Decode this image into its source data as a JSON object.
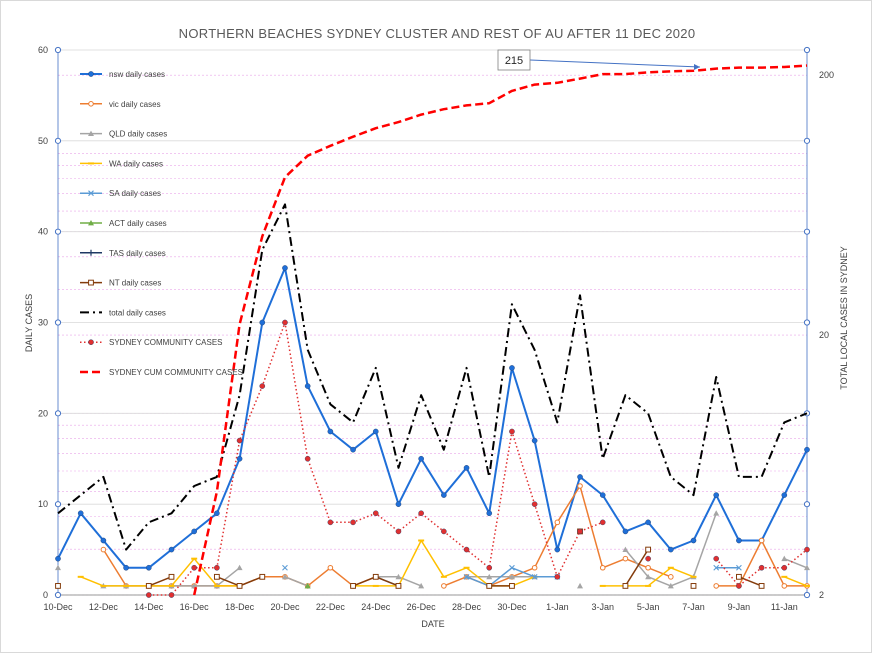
{
  "chart_data": {
    "type": "line",
    "title": "NORTHERN BEACHES SYDNEY CLUSTER AND REST OF AU AFTER 11 DEC 2020",
    "xlabel": "DATE",
    "ylabel": "DAILY CASES",
    "y2label": "TOTAL LOCAL CASES IN SYDNEY",
    "ylim": [
      0,
      60
    ],
    "yticks": [
      "0",
      "10",
      "20",
      "30",
      "40",
      "50",
      "60"
    ],
    "y2scale": "log",
    "y2lim": [
      2,
      250
    ],
    "y2ticks": [
      "2",
      "20",
      "200"
    ],
    "grid": true,
    "legend_position": "top-left",
    "x": [
      "10-Dec",
      "11-Dec",
      "12-Dec",
      "13-Dec",
      "14-Dec",
      "15-Dec",
      "16-Dec",
      "17-Dec",
      "18-Dec",
      "19-Dec",
      "20-Dec",
      "21-Dec",
      "22-Dec",
      "23-Dec",
      "24-Dec",
      "25-Dec",
      "26-Dec",
      "27-Dec",
      "28-Dec",
      "29-Dec",
      "30-Dec",
      "31-Dec",
      "1-Jan",
      "2-Jan",
      "3-Jan",
      "4-Jan",
      "5-Jan",
      "6-Jan",
      "7-Jan",
      "8-Jan",
      "9-Jan",
      "10-Jan",
      "11-Jan",
      "12-Jan"
    ],
    "xtick_labels": [
      "10-Dec",
      "12-Dec",
      "14-Dec",
      "16-Dec",
      "18-Dec",
      "20-Dec",
      "22-Dec",
      "24-Dec",
      "26-Dec",
      "28-Dec",
      "30-Dec",
      "1-Jan",
      "3-Jan",
      "5-Jan",
      "7-Jan",
      "9-Jan",
      "11-Jan"
    ],
    "series": [
      {
        "name": "nsw daily cases",
        "axis": "left",
        "color": "#1f6fd8",
        "style": "solid",
        "marker": "dot",
        "width": 2,
        "values": [
          4,
          9,
          6,
          3,
          3,
          5,
          7,
          9,
          15,
          30,
          36,
          23,
          18,
          16,
          18,
          10,
          15,
          11,
          14,
          9,
          25,
          17,
          5,
          13,
          11,
          7,
          8,
          5,
          6,
          11,
          6,
          6,
          11,
          16
        ]
      },
      {
        "name": "vic daily cases",
        "axis": "left",
        "color": "#ed7d31",
        "style": "solid",
        "marker": "circle",
        "width": 1.5,
        "values": [
          null,
          null,
          5,
          1,
          1,
          1,
          1,
          1,
          1,
          2,
          2,
          1,
          3,
          1,
          2,
          null,
          null,
          1,
          2,
          1,
          2,
          3,
          8,
          12,
          3,
          4,
          3,
          2,
          null,
          1,
          1,
          6,
          1,
          1
        ]
      },
      {
        "name": "QLD daily cases",
        "axis": "left",
        "color": "#a5a5a5",
        "style": "solid",
        "marker": "triangle",
        "width": 1.5,
        "values": [
          3,
          null,
          1,
          1,
          1,
          1,
          1,
          1,
          3,
          null,
          2,
          1,
          null,
          null,
          2,
          2,
          1,
          null,
          2,
          2,
          2,
          2,
          null,
          1,
          null,
          5,
          2,
          1,
          2,
          9,
          null,
          null,
          4,
          3
        ]
      },
      {
        "name": "WA  daily cases",
        "axis": "left",
        "color": "#ffc000",
        "style": "solid",
        "marker": "dash",
        "width": 1.5,
        "values": [
          null,
          2,
          1,
          1,
          1,
          1,
          4,
          1,
          1,
          null,
          null,
          null,
          null,
          1,
          1,
          1,
          6,
          2,
          3,
          1,
          1,
          2,
          null,
          null,
          1,
          1,
          1,
          3,
          2,
          null,
          null,
          null,
          2,
          1
        ]
      },
      {
        "name": "SA  daily cases",
        "axis": "left",
        "color": "#5b9bd5",
        "style": "solid",
        "marker": "x",
        "width": 1.5,
        "values": [
          null,
          null,
          null,
          null,
          null,
          null,
          null,
          null,
          null,
          null,
          3,
          null,
          null,
          null,
          2,
          1,
          null,
          null,
          2,
          1,
          3,
          2,
          2,
          null,
          null,
          null,
          null,
          null,
          null,
          3,
          3,
          null,
          null,
          null
        ]
      },
      {
        "name": "ACT daily cases",
        "axis": "left",
        "color": "#70ad47",
        "style": "solid",
        "marker": "triangle",
        "width": 1.5,
        "values": [
          null,
          null,
          null,
          null,
          null,
          null,
          null,
          null,
          null,
          null,
          null,
          1,
          null,
          null,
          null,
          null,
          null,
          null,
          null,
          null,
          null,
          null,
          null,
          null,
          null,
          null,
          null,
          null,
          null,
          null,
          null,
          null,
          null,
          null
        ]
      },
      {
        "name": "TAS daily cases",
        "axis": "left",
        "color": "#1f3864",
        "style": "solid",
        "marker": "plus",
        "width": 1.5,
        "values": [
          null,
          null,
          null,
          null,
          null,
          null,
          null,
          null,
          null,
          null,
          null,
          null,
          null,
          null,
          null,
          null,
          null,
          null,
          null,
          null,
          null,
          null,
          null,
          null,
          null,
          null,
          null,
          null,
          null,
          null,
          null,
          null,
          null,
          null
        ]
      },
      {
        "name": "NT daily cases",
        "axis": "left",
        "color": "#843c0c",
        "style": "solid",
        "marker": "square",
        "width": 1.5,
        "values": [
          1,
          null,
          null,
          null,
          1,
          2,
          null,
          2,
          1,
          2,
          null,
          null,
          null,
          1,
          2,
          1,
          null,
          null,
          null,
          1,
          1,
          null,
          null,
          7,
          null,
          1,
          5,
          null,
          1,
          null,
          2,
          1,
          null,
          null
        ]
      },
      {
        "name": "total daily cases",
        "axis": "left",
        "color": "#000000",
        "style": "dashdot",
        "marker": "none",
        "width": 2,
        "values": [
          9,
          11,
          13,
          5,
          8,
          9,
          12,
          13,
          22,
          38,
          43,
          27,
          21,
          19,
          25,
          14,
          22,
          16,
          25,
          13,
          32,
          27,
          19,
          33,
          15,
          22,
          20,
          13,
          11,
          24,
          13,
          13,
          19,
          20
        ]
      },
      {
        "name": "SYDNEY COMMUNITY CASES",
        "axis": "left",
        "color": "#e03030",
        "style": "dotted",
        "marker": "dot",
        "width": 1.5,
        "values": [
          null,
          null,
          null,
          null,
          0,
          0,
          3,
          3,
          17,
          23,
          30,
          15,
          8,
          8,
          9,
          7,
          9,
          7,
          5,
          3,
          18,
          10,
          2,
          7,
          8,
          null,
          4,
          null,
          null,
          4,
          1,
          3,
          3,
          5
        ]
      },
      {
        "name": "SYDNEY CUM COMMUNITY CASES",
        "axis": "right",
        "color": "#ff0000",
        "style": "dashed",
        "marker": "none",
        "width": 2.5,
        "values": [
          null,
          null,
          null,
          null,
          null,
          null,
          2,
          5,
          22,
          48,
          81,
          98,
          107,
          116,
          125,
          132,
          141,
          148,
          153,
          156,
          174,
          184,
          187,
          194,
          202,
          202,
          205,
          207,
          208,
          212,
          214,
          214,
          215,
          218
        ]
      }
    ],
    "annotations": [
      {
        "text": "215",
        "target_index": 32,
        "axis": "right"
      }
    ]
  }
}
